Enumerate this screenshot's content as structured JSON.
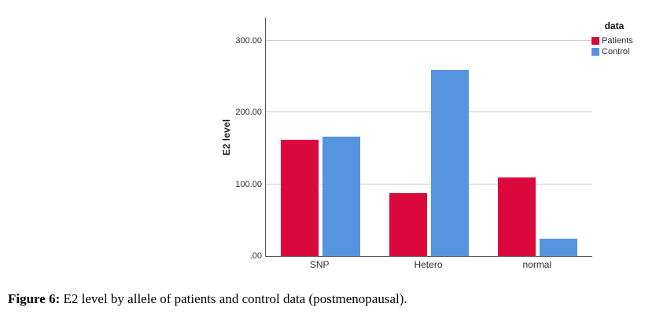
{
  "chart_data": {
    "type": "bar",
    "title": "",
    "categories": [
      "SNP",
      "Hetero",
      "normal"
    ],
    "series": [
      {
        "name": "Patients",
        "color": "#dc0a3c",
        "values": [
          162,
          88,
          110
        ]
      },
      {
        "name": "Control",
        "color": "#5794e0",
        "values": [
          166,
          260,
          24
        ]
      }
    ],
    "xlabel": "",
    "ylabel": "E2 level",
    "ylim": [
      0,
      332
    ],
    "yticks": [
      {
        "value": 0,
        "label": ".00"
      },
      {
        "value": 100,
        "label": "100.00"
      },
      {
        "value": 200,
        "label": "200.00"
      },
      {
        "value": 300,
        "label": "300.00"
      }
    ],
    "grid": true,
    "legend_position": "top-right-outside"
  },
  "legend": {
    "title": "data"
  },
  "caption": {
    "label": "Figure 6:",
    "text": "E2 level by allele of patients and control data (postmenopausal)."
  },
  "colors": {
    "axis": "#4d4d4d",
    "gridline": "#cccccc",
    "background": "#ffffff"
  }
}
